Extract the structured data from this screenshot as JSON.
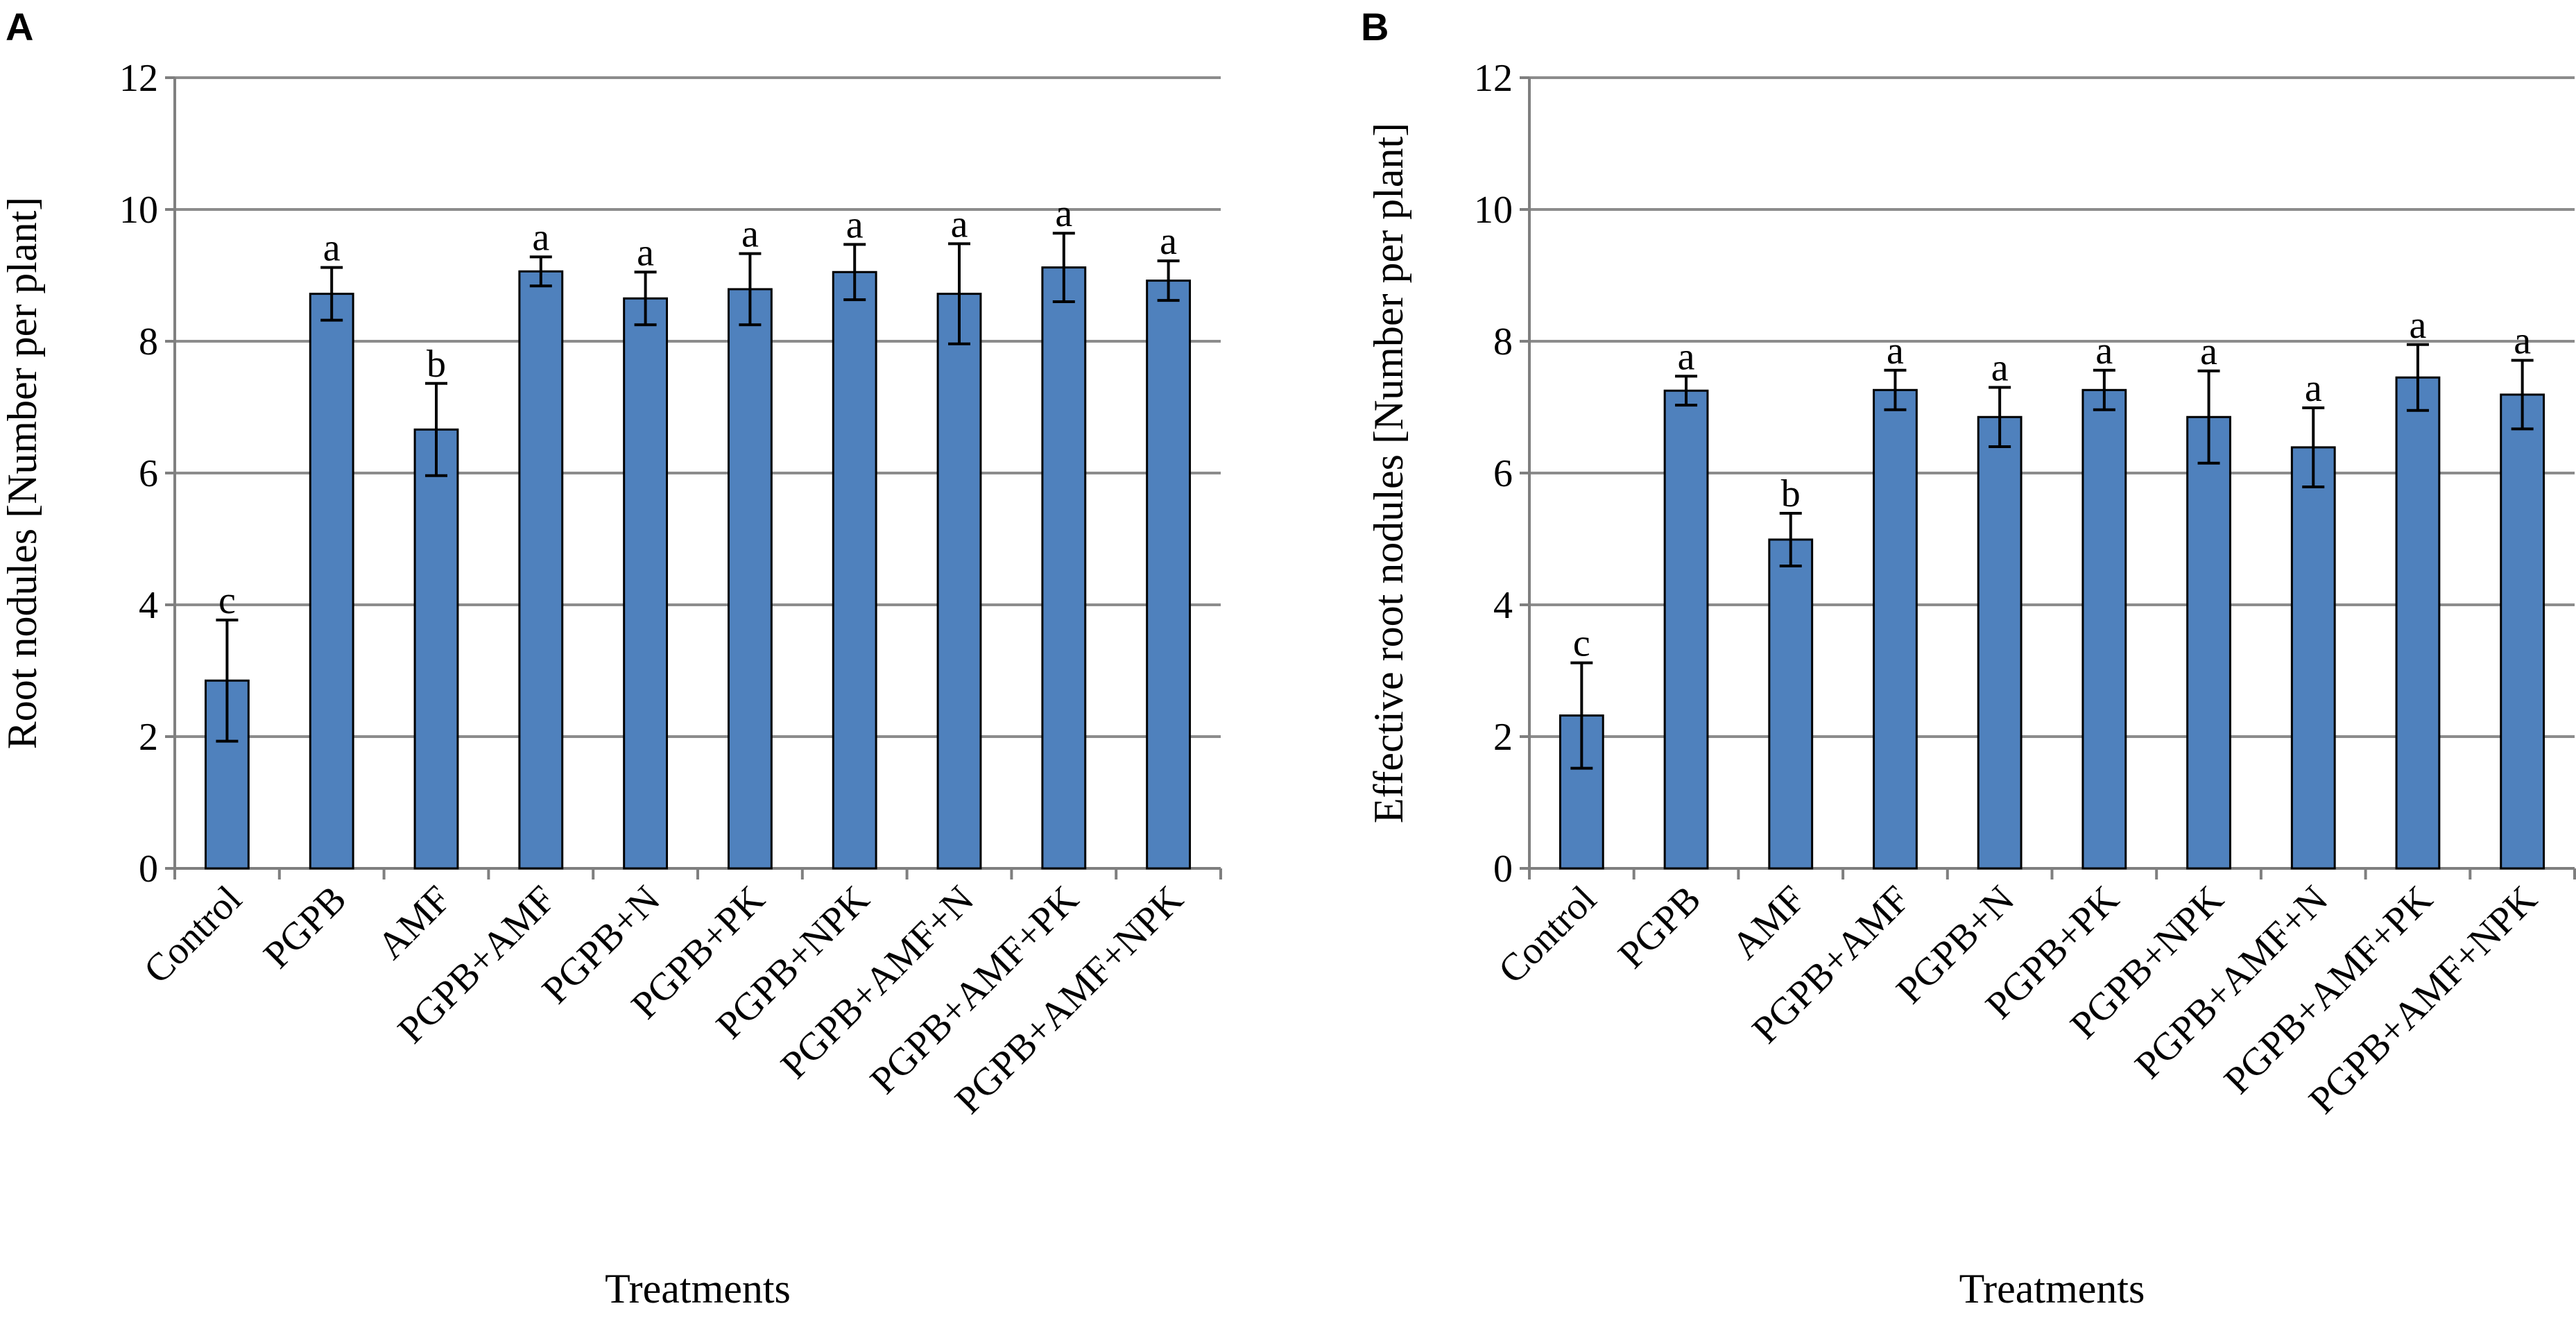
{
  "chart_data": [
    {
      "panel": "A",
      "type": "bar",
      "title": "",
      "xlabel": "Treatments",
      "ylabel": "Root nodules [Number per plant]",
      "ylim": [
        0,
        12
      ],
      "yticks": [
        "0",
        "2",
        "4",
        "6",
        "8",
        "10",
        "12"
      ],
      "grid": true,
      "categories": [
        "Control",
        "PGPB",
        "AMF",
        "PGPB+AMF",
        "PGPB+N",
        "PGPB+PK",
        "PGPB+NPK",
        "PGPB+AMF+N",
        "PGPB+AMF+PK",
        "PGPB+AMF+NPK"
      ],
      "values": [
        2.85,
        8.72,
        6.66,
        9.06,
        8.65,
        8.79,
        9.05,
        8.72,
        9.12,
        8.92
      ],
      "errors": [
        0.92,
        0.4,
        0.7,
        0.22,
        0.4,
        0.54,
        0.42,
        0.76,
        0.52,
        0.3
      ],
      "significance": [
        "c",
        "a",
        "b",
        "a",
        "a",
        "a",
        "a",
        "a",
        "a",
        "a"
      ]
    },
    {
      "panel": "B",
      "type": "bar",
      "title": "",
      "xlabel": "Treatments",
      "ylabel": "Effective root nodules [Number per plant]",
      "ylim": [
        0,
        12
      ],
      "yticks": [
        "0",
        "2",
        "4",
        "6",
        "8",
        "10",
        "12"
      ],
      "grid": true,
      "categories": [
        "Control",
        "PGPB",
        "AMF",
        "PGPB+AMF",
        "PGPB+N",
        "PGPB+PK",
        "PGPB+NPK",
        "PGPB+AMF+N",
        "PGPB+AMF+PK",
        "PGPB+AMF+NPK"
      ],
      "values": [
        2.32,
        7.25,
        4.99,
        7.26,
        6.85,
        7.26,
        6.85,
        6.39,
        7.45,
        7.19
      ],
      "errors": [
        0.8,
        0.22,
        0.4,
        0.3,
        0.45,
        0.3,
        0.7,
        0.6,
        0.5,
        0.52
      ],
      "significance": [
        "c",
        "a",
        "b",
        "a",
        "a",
        "a",
        "a",
        "a",
        "a",
        "a"
      ]
    }
  ]
}
